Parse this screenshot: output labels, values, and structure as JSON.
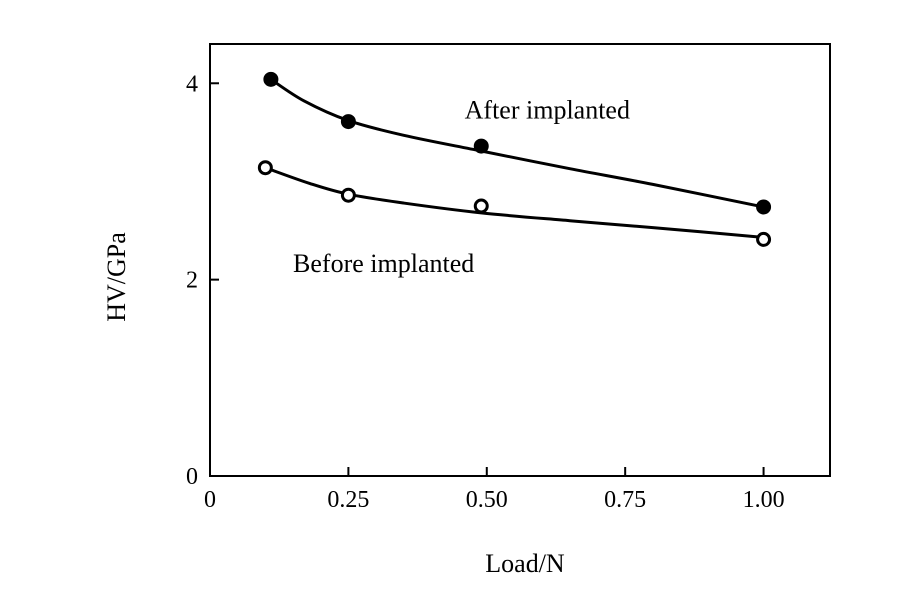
{
  "chart_data": {
    "type": "scatter",
    "xlabel": "Load/N",
    "ylabel": "HV/GPa",
    "xlim": [
      0,
      1.12
    ],
    "ylim": [
      0,
      4.4
    ],
    "x_ticks": [
      {
        "value": 0,
        "label": "0"
      },
      {
        "value": 0.25,
        "label": "0.25"
      },
      {
        "value": 0.5,
        "label": "0.50"
      },
      {
        "value": 0.75,
        "label": "0.75"
      },
      {
        "value": 1.0,
        "label": "1.00"
      }
    ],
    "y_ticks": [
      {
        "value": 0,
        "label": "0"
      },
      {
        "value": 2,
        "label": "2"
      },
      {
        "value": 4,
        "label": "4"
      }
    ],
    "grid": false,
    "series": [
      {
        "name": "After implanted",
        "marker": "filled-circle",
        "x": [
          0.11,
          0.25,
          0.49,
          1.0
        ],
        "y": [
          4.04,
          3.61,
          3.36,
          2.74
        ],
        "fit": [
          [
            0.11,
            4.04
          ],
          [
            0.17,
            3.82
          ],
          [
            0.25,
            3.62
          ],
          [
            0.35,
            3.47
          ],
          [
            0.49,
            3.31
          ],
          [
            0.65,
            3.13
          ],
          [
            0.8,
            2.97
          ],
          [
            1.0,
            2.74
          ]
        ]
      },
      {
        "name": "Before implanted",
        "marker": "open-circle",
        "x": [
          0.1,
          0.25,
          0.49,
          1.0
        ],
        "y": [
          3.14,
          2.86,
          2.75,
          2.41
        ],
        "fit": [
          [
            0.1,
            3.14
          ],
          [
            0.18,
            2.98
          ],
          [
            0.25,
            2.87
          ],
          [
            0.35,
            2.78
          ],
          [
            0.49,
            2.68
          ],
          [
            0.65,
            2.6
          ],
          [
            0.8,
            2.53
          ],
          [
            1.0,
            2.43
          ]
        ]
      }
    ],
    "annotations": [
      {
        "text": "After implanted",
        "series": 0,
        "x": 0.46,
        "y": 3.64
      },
      {
        "text": "Before implanted",
        "series": 1,
        "x": 0.15,
        "y": 2.08
      }
    ]
  }
}
